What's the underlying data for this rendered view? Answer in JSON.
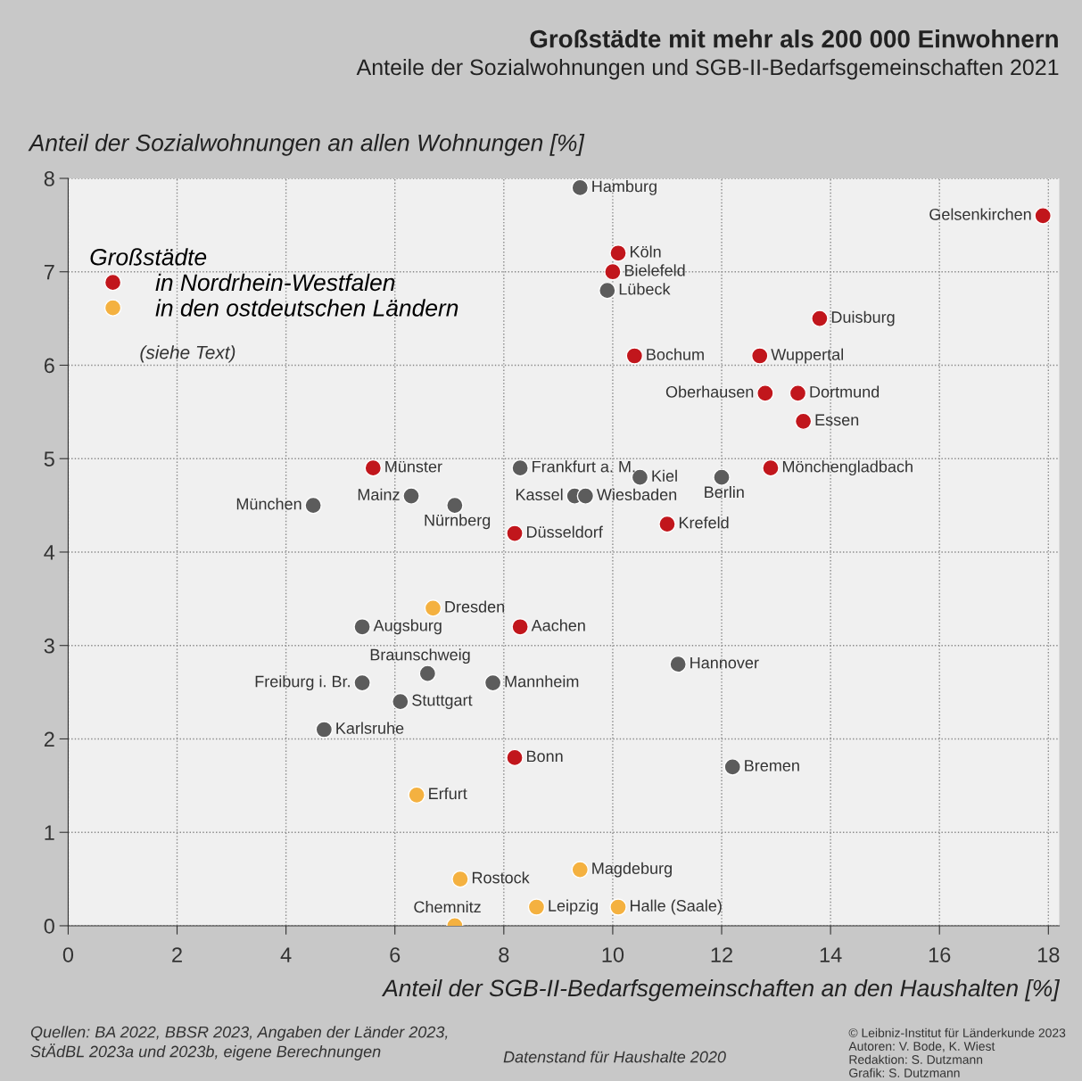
{
  "chart_data": {
    "type": "scatter",
    "title": "Großstädte mit mehr als 200 000 Einwohnern",
    "subtitle": "Anteile der Sozialwohnungen und SGB-II-Bedarfsgemeinschaften 2021",
    "xlabel": "Anteil der SGB-II-Bedarfsgemeinschaften an den Haushalten [%]",
    "ylabel": "Anteil der Sozialwohnungen an allen Wohnungen [%]",
    "legend_title": "Großstädte",
    "legend": "top left",
    "grid": true,
    "marker": "circle",
    "xlim": [
      0,
      18.2
    ],
    "ylim": [
      0,
      8
    ],
    "xticks": [
      0,
      2,
      4,
      6,
      8,
      10,
      12,
      14,
      16,
      18
    ],
    "yticks": [
      0,
      1,
      2,
      3,
      4,
      5,
      6,
      7,
      8
    ],
    "series": [
      {
        "color": "#5c5c5c",
        "x": [
          9.4,
          9.9,
          8.3,
          10.5,
          12.0,
          6.3,
          9.3,
          9.5,
          4.5,
          7.1,
          5.4,
          6.6,
          11.2,
          5.4,
          7.8,
          6.1,
          4.7,
          12.2
        ],
        "values": [
          7.9,
          6.8,
          4.9,
          4.8,
          4.8,
          4.6,
          4.6,
          4.6,
          4.5,
          4.5,
          3.2,
          2.7,
          2.8,
          2.6,
          2.6,
          2.4,
          2.1,
          1.7
        ]
      },
      {
        "name": "in Nordrhein-Westfalen",
        "color": "#c1161c",
        "x": [
          17.9,
          10.1,
          10.0,
          13.8,
          10.4,
          12.7,
          12.8,
          13.4,
          13.5,
          5.6,
          12.9,
          8.2,
          11.0,
          8.3,
          8.2
        ],
        "values": [
          7.6,
          7.2,
          7.0,
          6.5,
          6.1,
          6.1,
          5.7,
          5.7,
          5.4,
          4.9,
          4.9,
          4.2,
          4.3,
          3.2,
          1.8
        ]
      },
      {
        "name": "in den ostdeutschen Ländern",
        "color": "#f4b140",
        "x": [
          6.7,
          6.4,
          7.2,
          9.4,
          8.6,
          10.1,
          7.1
        ],
        "values": [
          3.4,
          1.4,
          0.5,
          0.6,
          0.2,
          0.2,
          0.0
        ]
      }
    ],
    "annotations": [
      {
        "text": "Hamburg",
        "x": 9.4,
        "y": 7.9
      },
      {
        "text": "Gelsenkirchen",
        "x": 17.9,
        "y": 7.6
      },
      {
        "text": "Köln",
        "x": 10.1,
        "y": 7.2
      },
      {
        "text": "Bielefeld",
        "x": 10.0,
        "y": 7.0
      },
      {
        "text": "Lübeck",
        "x": 9.9,
        "y": 6.8
      },
      {
        "text": "Duisburg",
        "x": 13.8,
        "y": 6.5
      },
      {
        "text": "Bochum",
        "x": 10.4,
        "y": 6.1
      },
      {
        "text": "Wuppertal",
        "x": 12.7,
        "y": 6.1
      },
      {
        "text": "Oberhausen",
        "x": 12.8,
        "y": 5.7
      },
      {
        "text": "Dortmund",
        "x": 13.4,
        "y": 5.7
      },
      {
        "text": "Essen",
        "x": 13.5,
        "y": 5.4
      },
      {
        "text": "Münster",
        "x": 5.6,
        "y": 4.9
      },
      {
        "text": "Frankfurt a. M.",
        "x": 8.3,
        "y": 4.9
      },
      {
        "text": "Kiel",
        "x": 10.5,
        "y": 4.8
      },
      {
        "text": "Berlin",
        "x": 12.0,
        "y": 4.8
      },
      {
        "text": "Mönchengladbach",
        "x": 12.9,
        "y": 4.9
      },
      {
        "text": "Mainz",
        "x": 6.3,
        "y": 4.6
      },
      {
        "text": "Kassel",
        "x": 9.3,
        "y": 4.6
      },
      {
        "text": "Wiesbaden",
        "x": 9.5,
        "y": 4.6
      },
      {
        "text": "München",
        "x": 4.5,
        "y": 4.5
      },
      {
        "text": "Nürnberg",
        "x": 7.1,
        "y": 4.5
      },
      {
        "text": "Düsseldorf",
        "x": 8.2,
        "y": 4.2
      },
      {
        "text": "Krefeld",
        "x": 11.0,
        "y": 4.3
      },
      {
        "text": "Dresden",
        "x": 6.7,
        "y": 3.4
      },
      {
        "text": "Augsburg",
        "x": 5.4,
        "y": 3.2
      },
      {
        "text": "Aachen",
        "x": 8.3,
        "y": 3.2
      },
      {
        "text": "Braunschweig",
        "x": 6.6,
        "y": 2.7
      },
      {
        "text": "Hannover",
        "x": 11.2,
        "y": 2.8
      },
      {
        "text": "Freiburg i. Br.",
        "x": 5.4,
        "y": 2.6
      },
      {
        "text": "Mannheim",
        "x": 7.8,
        "y": 2.6
      },
      {
        "text": "Stuttgart",
        "x": 6.1,
        "y": 2.4
      },
      {
        "text": "Karlsruhe",
        "x": 4.7,
        "y": 2.1
      },
      {
        "text": "Bonn",
        "x": 8.2,
        "y": 1.8
      },
      {
        "text": "Bremen",
        "x": 12.2,
        "y": 1.7
      },
      {
        "text": "Erfurt",
        "x": 6.4,
        "y": 1.4
      },
      {
        "text": "Rostock",
        "x": 7.2,
        "y": 0.5
      },
      {
        "text": "Magdeburg",
        "x": 9.4,
        "y": 0.6
      },
      {
        "text": "Leipzig",
        "x": 8.6,
        "y": 0.2
      },
      {
        "text": "Halle (Saale)",
        "x": 10.1,
        "y": 0.2
      },
      {
        "text": "Chemnitz",
        "x": 7.1,
        "y": 0.0
      },
      "(siehe Text)",
      "Quellen: BA 2022, BBSR 2023, Angaben der Länder 2023,\nStÄdBL 2023a und 2023b, eigene Berechnungen",
      "Datenstand für Haushalte 2020",
      "© Leibniz-Institut für Länderkunde 2023\nAutoren: V. Bode, K. Wiest\nRedaktion: S. Dutzmann\nGrafik: S. Dutzmann"
    ]
  }
}
